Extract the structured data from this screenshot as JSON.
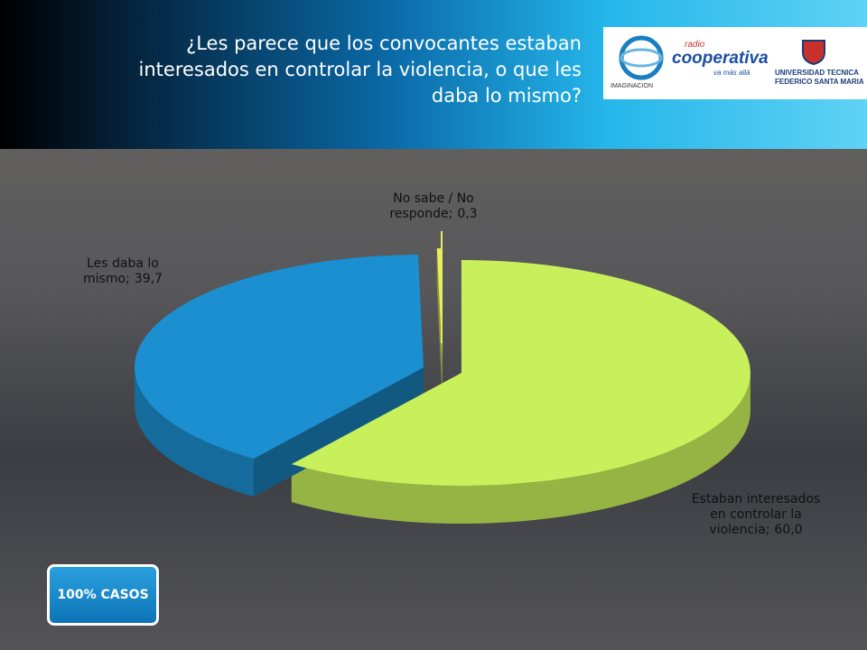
{
  "chart_data": {
    "type": "pie3d",
    "title": "¿Les parece que los convocantes estaban interesados en controlar la violencia, o que les daba lo mismo?",
    "categories": [
      "Estaban interesados en controlar la violencia;",
      "Les daba lo mismo;",
      "No sabe / No responde;"
    ],
    "values": [
      60.0,
      39.7,
      0.3
    ],
    "value_labels": [
      "60,0",
      "39,7",
      "0,3"
    ],
    "colors": [
      "#c8f05a",
      "#1b8fd0",
      "#e6ee5e"
    ]
  },
  "badge": "100% CASOS",
  "logos": {
    "imaginacion": "IMAGINACION",
    "radio": "radio",
    "cooperativa": "cooperativa",
    "slogan": "va más allá",
    "university": "UNIVERSIDAD TECNICA",
    "university2": "FEDERICO SANTA MARIA"
  }
}
